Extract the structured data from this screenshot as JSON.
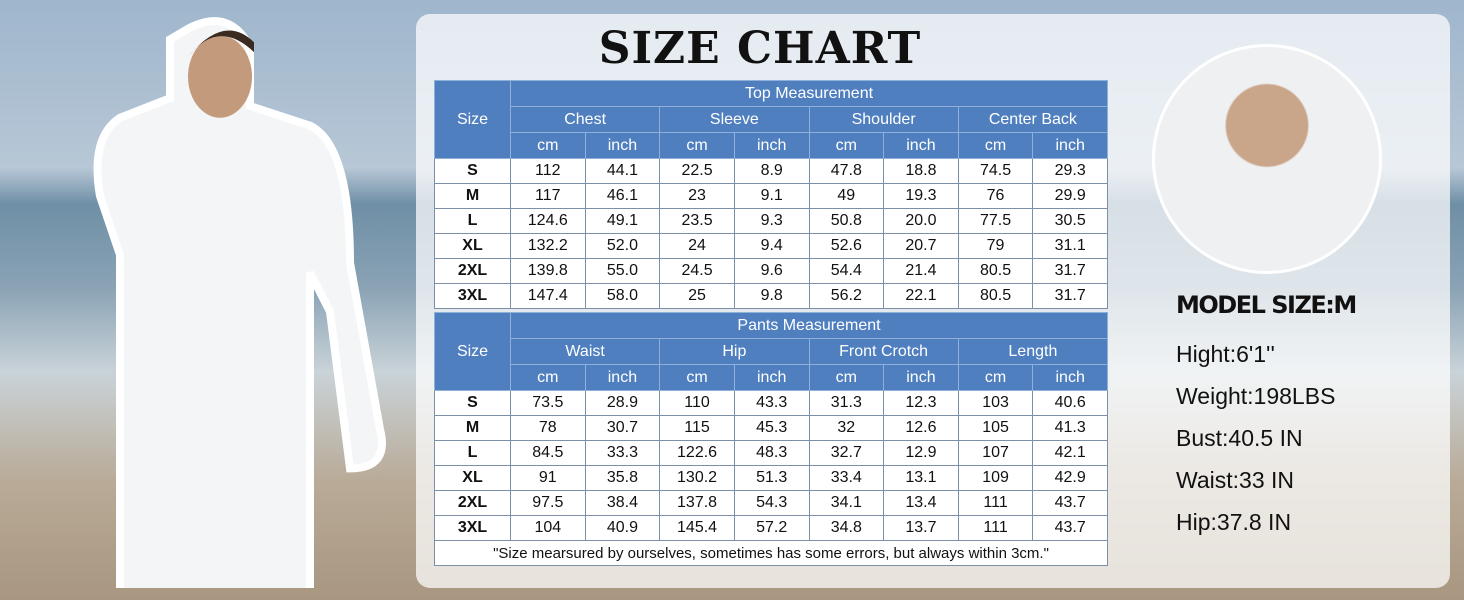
{
  "title": "SIZE CHART",
  "size_label": "Size",
  "units": [
    "cm",
    "inch"
  ],
  "top": {
    "heading": "Top Measurement",
    "columns": [
      "Chest",
      "Sleeve",
      "Shoulder",
      "Center Back"
    ],
    "rows": [
      [
        "S",
        "112",
        "44.1",
        "22.5",
        "8.9",
        "47.8",
        "18.8",
        "74.5",
        "29.3"
      ],
      [
        "M",
        "117",
        "46.1",
        "23",
        "9.1",
        "49",
        "19.3",
        "76",
        "29.9"
      ],
      [
        "L",
        "124.6",
        "49.1",
        "23.5",
        "9.3",
        "50.8",
        "20.0",
        "77.5",
        "30.5"
      ],
      [
        "XL",
        "132.2",
        "52.0",
        "24",
        "9.4",
        "52.6",
        "20.7",
        "79",
        "31.1"
      ],
      [
        "2XL",
        "139.8",
        "55.0",
        "24.5",
        "9.6",
        "54.4",
        "21.4",
        "80.5",
        "31.7"
      ],
      [
        "3XL",
        "147.4",
        "58.0",
        "25",
        "9.8",
        "56.2",
        "22.1",
        "80.5",
        "31.7"
      ]
    ]
  },
  "pants": {
    "heading": "Pants Measurement",
    "columns": [
      "Waist",
      "Hip",
      "Front Crotch",
      "Length"
    ],
    "rows": [
      [
        "S",
        "73.5",
        "28.9",
        "110",
        "43.3",
        "31.3",
        "12.3",
        "103",
        "40.6"
      ],
      [
        "M",
        "78",
        "30.7",
        "115",
        "45.3",
        "32",
        "12.6",
        "105",
        "41.3"
      ],
      [
        "L",
        "84.5",
        "33.3",
        "122.6",
        "48.3",
        "32.7",
        "12.9",
        "107",
        "42.1"
      ],
      [
        "XL",
        "91",
        "35.8",
        "130.2",
        "51.3",
        "33.4",
        "13.1",
        "109",
        "42.9"
      ],
      [
        "2XL",
        "97.5",
        "38.4",
        "137.8",
        "54.3",
        "34.1",
        "13.4",
        "111",
        "43.7"
      ],
      [
        "3XL",
        "104",
        "40.9",
        "145.4",
        "57.2",
        "34.8",
        "13.7",
        "111",
        "43.7"
      ]
    ]
  },
  "note": "\"Size mearsured by ourselves, sometimes has some errors, but always within 3cm.\"",
  "model": {
    "heading": "MODEL SIZE:M",
    "lines": [
      "Hight:6'1''",
      "Weight:198LBS",
      "Bust:40.5 IN",
      "Waist:33 IN",
      "Hip:37.8 IN"
    ]
  },
  "colors": {
    "header": "#4f7fbf"
  }
}
